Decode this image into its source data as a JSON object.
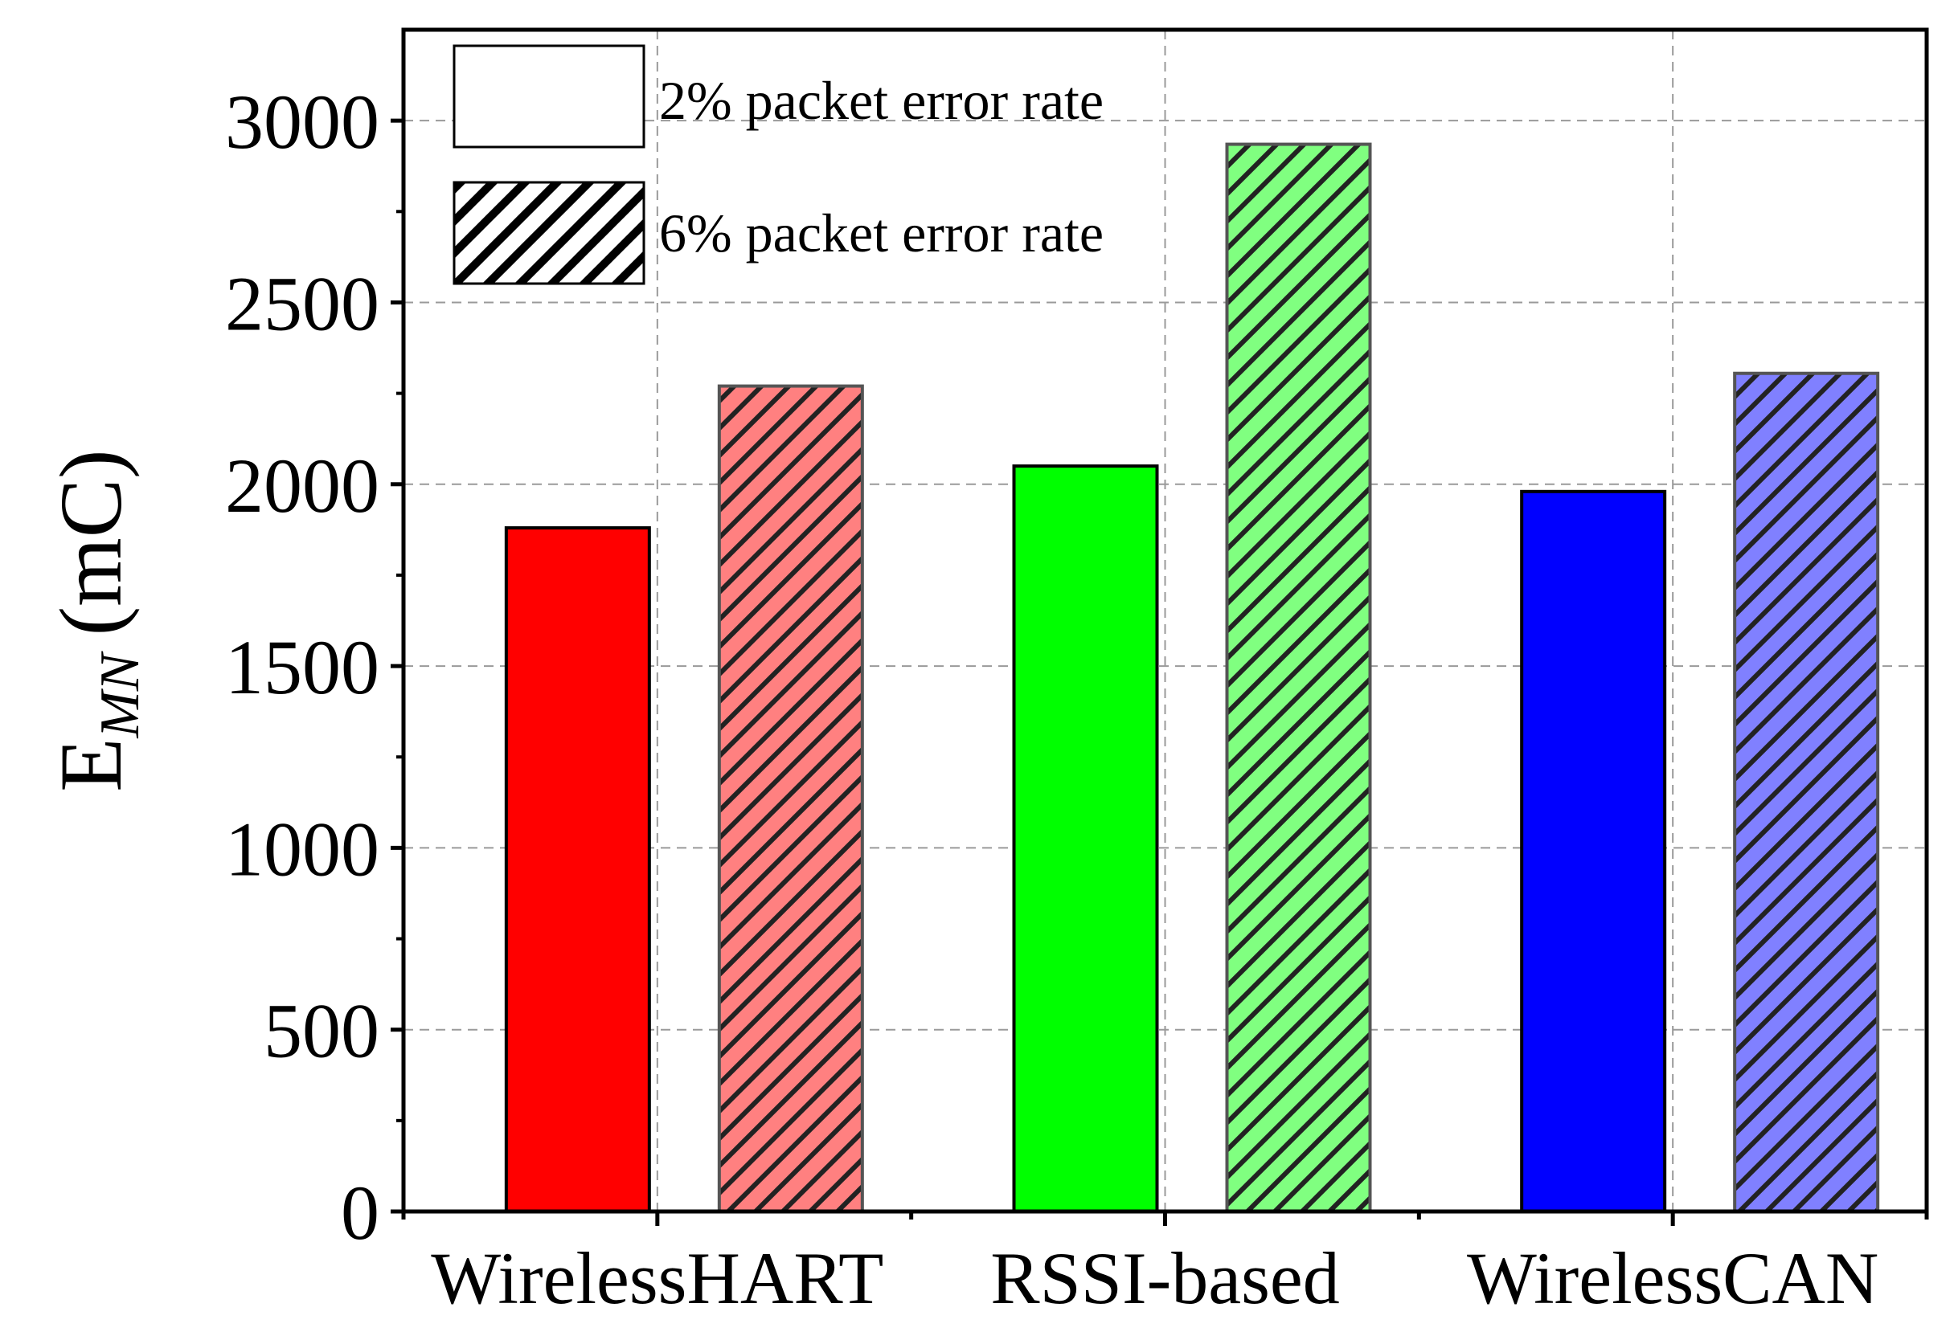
{
  "chart_data": {
    "type": "bar",
    "title": "",
    "xlabel": "",
    "ylabel": {
      "main": "E",
      "subscript": "MN",
      "unit": "(mC)"
    },
    "ylim": [
      0,
      3250
    ],
    "yticks": [
      0,
      500,
      1000,
      1500,
      2000,
      2500,
      3000
    ],
    "yticks_labels": [
      "0",
      "500",
      "1000",
      "1500",
      "2000",
      "2500",
      "3000"
    ],
    "categories": [
      "WirelessHART",
      "RSSI-based",
      "WirelessCAN"
    ],
    "series": [
      {
        "name": "2% packet error rate",
        "values": [
          1880,
          2050,
          1980
        ],
        "pattern": "solid"
      },
      {
        "name": "6% packet error rate",
        "values": [
          2270,
          2935,
          2305
        ],
        "pattern": "hatched"
      }
    ],
    "category_colors": [
      "#ff0000",
      "#00ff00",
      "#0000ff"
    ],
    "category_light_colors": [
      "#ff8080",
      "#80ff80",
      "#8080ff"
    ],
    "grid": true,
    "legend": {
      "position": "top-left",
      "entries": [
        "2% packet error rate",
        "6% packet error rate"
      ]
    }
  }
}
